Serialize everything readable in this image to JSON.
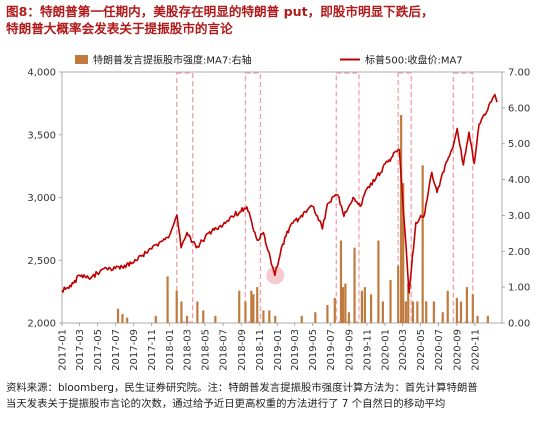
{
  "title_line1": "图8：特朗普第一任期内，美股存在明显的特朗普 put，即股市明显下跌后，",
  "title_line2": "特朗普大概率会发表关于提振股市的言论",
  "footer_line1": "资料来源：bloomberg，民生证券研究院。注：特朗普发言提振股市强度计算方法为：首先计算特朗普",
  "footer_line2": "当天发表关于提振股市言论的次数，通过给予近日更高权重的方法进行了 7 个自然日的移动平均",
  "chart_data": {
    "type": "line+bar",
    "x_tick_labels": [
      "2017-01",
      "2017-03",
      "2017-05",
      "2017-07",
      "2017-09",
      "2017-11",
      "2018-01",
      "2018-03",
      "2018-05",
      "2018-07",
      "2018-09",
      "2018-11",
      "2019-01",
      "2019-03",
      "2019-05",
      "2019-07",
      "2019-09",
      "2019-11",
      "2020-01",
      "2020-03",
      "2020-05",
      "2020-07",
      "2020-09",
      "2020-11"
    ],
    "left_axis": {
      "min": 2000,
      "max": 4000,
      "ticks": [
        "2,000",
        "2,500",
        "3,000",
        "3,500",
        "4,000"
      ]
    },
    "right_axis": {
      "min": 0,
      "max": 7,
      "ticks": [
        "0.00",
        "1.00",
        "2.00",
        "3.00",
        "4.00",
        "5.00",
        "6.00",
        "7.00"
      ]
    },
    "colors": {
      "line": "#c00000",
      "bar": "#c07a3e",
      "highlight_box": "#f0a0a8",
      "highlight_circle": "#f4b8c0"
    },
    "legend": {
      "bar_label": "特朗普发言提振股市强度:MA7:右轴",
      "line_label": "标普500:收盘价:MA7"
    },
    "highlight_ranges": [
      [
        "2018-01-25",
        "2018-03-20"
      ],
      [
        "2018-09-15",
        "2018-11-05"
      ],
      [
        "2019-07-20",
        "2019-10-05"
      ],
      [
        "2020-02-15",
        "2020-03-30"
      ],
      [
        "2020-08-20",
        "2020-10-25"
      ]
    ],
    "highlight_point": {
      "date": "2018-12-25",
      "value": 2380
    },
    "line_series": {
      "name": "标普500:收盘价:MA7",
      "points": [
        [
          "2017-01-01",
          2260
        ],
        [
          "2017-02-01",
          2290
        ],
        [
          "2017-03-01",
          2380
        ],
        [
          "2017-04-01",
          2360
        ],
        [
          "2017-05-01",
          2395
        ],
        [
          "2017-06-01",
          2435
        ],
        [
          "2017-07-01",
          2435
        ],
        [
          "2017-08-01",
          2460
        ],
        [
          "2017-09-01",
          2480
        ],
        [
          "2017-10-01",
          2540
        ],
        [
          "2017-11-01",
          2590
        ],
        [
          "2017-12-01",
          2650
        ],
        [
          "2018-01-01",
          2700
        ],
        [
          "2018-01-26",
          2860
        ],
        [
          "2018-02-09",
          2600
        ],
        [
          "2018-03-01",
          2720
        ],
        [
          "2018-04-01",
          2600
        ],
        [
          "2018-05-01",
          2680
        ],
        [
          "2018-06-01",
          2740
        ],
        [
          "2018-07-01",
          2780
        ],
        [
          "2018-08-01",
          2850
        ],
        [
          "2018-09-20",
          2925
        ],
        [
          "2018-10-25",
          2660
        ],
        [
          "2018-11-15",
          2720
        ],
        [
          "2018-12-24",
          2380
        ],
        [
          "2019-01-15",
          2600
        ],
        [
          "2019-02-15",
          2780
        ],
        [
          "2019-03-15",
          2830
        ],
        [
          "2019-04-30",
          2930
        ],
        [
          "2019-06-03",
          2750
        ],
        [
          "2019-06-20",
          2950
        ],
        [
          "2019-07-25",
          3020
        ],
        [
          "2019-08-15",
          2850
        ],
        [
          "2019-09-15",
          3000
        ],
        [
          "2019-10-10",
          2930
        ],
        [
          "2019-11-01",
          3070
        ],
        [
          "2019-12-01",
          3150
        ],
        [
          "2020-01-15",
          3300
        ],
        [
          "2020-02-19",
          3380
        ],
        [
          "2020-03-23",
          2240
        ],
        [
          "2020-04-15",
          2800
        ],
        [
          "2020-05-15",
          2870
        ],
        [
          "2020-06-08",
          3200
        ],
        [
          "2020-06-26",
          3040
        ],
        [
          "2020-07-15",
          3200
        ],
        [
          "2020-08-15",
          3380
        ],
        [
          "2020-09-02",
          3550
        ],
        [
          "2020-09-23",
          3260
        ],
        [
          "2020-10-12",
          3520
        ],
        [
          "2020-10-30",
          3270
        ],
        [
          "2020-11-15",
          3580
        ],
        [
          "2020-12-15",
          3700
        ],
        [
          "2021-01-08",
          3820
        ],
        [
          "2021-01-15",
          3760
        ]
      ]
    },
    "bar_series": {
      "name": "特朗普发言提振股市强度:MA7:右轴",
      "points": [
        [
          "2017-07-10",
          0.4
        ],
        [
          "2017-07-25",
          0.25
        ],
        [
          "2017-08-10",
          0.15
        ],
        [
          "2017-11-15",
          0.2
        ],
        [
          "2017-12-25",
          1.3
        ],
        [
          "2018-01-25",
          0.9
        ],
        [
          "2018-02-10",
          0.6
        ],
        [
          "2018-03-01",
          0.2
        ],
        [
          "2018-04-05",
          0.6
        ],
        [
          "2018-04-25",
          0.35
        ],
        [
          "2018-06-05",
          0.2
        ],
        [
          "2018-08-25",
          0.9
        ],
        [
          "2018-09-15",
          0.6
        ],
        [
          "2018-10-05",
          0.9
        ],
        [
          "2018-10-12",
          0.8
        ],
        [
          "2018-10-25",
          1.0
        ],
        [
          "2018-11-15",
          0.35
        ],
        [
          "2018-12-05",
          0.35
        ],
        [
          "2018-12-25",
          0.2
        ],
        [
          "2019-03-25",
          0.2
        ],
        [
          "2019-05-10",
          0.3
        ],
        [
          "2019-06-20",
          0.5
        ],
        [
          "2019-07-15",
          0.7
        ],
        [
          "2019-08-05",
          2.3
        ],
        [
          "2019-08-12",
          1.0
        ],
        [
          "2019-08-20",
          1.1
        ],
        [
          "2019-09-01",
          0.3
        ],
        [
          "2019-09-20",
          2.1
        ],
        [
          "2019-10-15",
          0.9
        ],
        [
          "2019-10-25",
          1.0
        ],
        [
          "2019-11-15",
          0.8
        ],
        [
          "2019-12-10",
          2.3
        ],
        [
          "2019-12-25",
          0.6
        ],
        [
          "2020-01-20",
          1.2
        ],
        [
          "2020-02-15",
          1.6
        ],
        [
          "2020-02-25",
          5.8
        ],
        [
          "2020-03-03",
          3.9
        ],
        [
          "2020-03-12",
          0.6
        ],
        [
          "2020-03-20",
          1.1
        ],
        [
          "2020-04-05",
          0.6
        ],
        [
          "2020-04-20",
          0.6
        ],
        [
          "2020-05-08",
          4.4
        ],
        [
          "2020-05-20",
          0.6
        ],
        [
          "2020-06-15",
          0.6
        ],
        [
          "2020-07-15",
          0.3
        ],
        [
          "2020-08-01",
          0.9
        ],
        [
          "2020-09-01",
          0.7
        ],
        [
          "2020-09-15",
          0.6
        ],
        [
          "2020-10-05",
          1.0
        ],
        [
          "2020-10-25",
          0.8
        ],
        [
          "2020-11-10",
          0.2
        ],
        [
          "2020-12-15",
          0.2
        ]
      ]
    }
  }
}
